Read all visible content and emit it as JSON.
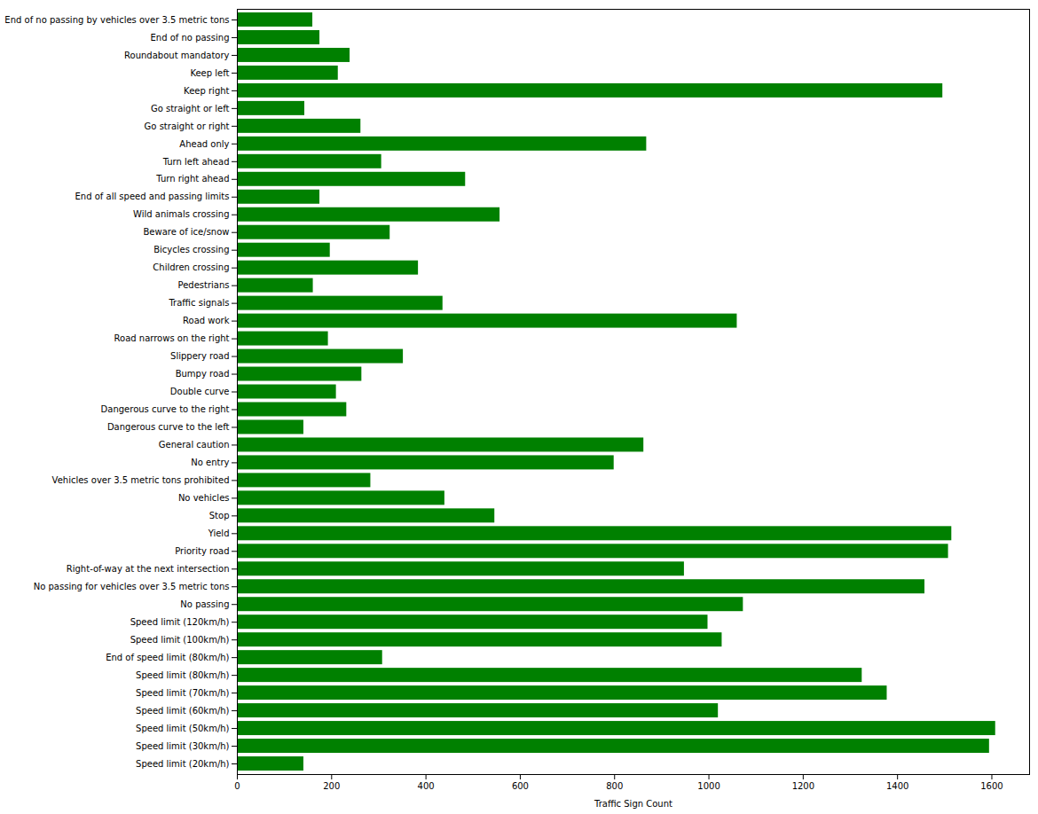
{
  "chart_data": {
    "type": "bar",
    "orientation": "horizontal",
    "color": "#008000",
    "xlabel": "Traffic Sign Count",
    "categories": [
      "Speed limit (20km/h)",
      "Speed limit (30km/h)",
      "Speed limit (50km/h)",
      "Speed limit (60km/h)",
      "Speed limit (70km/h)",
      "Speed limit (80km/h)",
      "End of speed limit (80km/h)",
      "Speed limit (100km/h)",
      "Speed limit (120km/h)",
      "No passing",
      "No passing for vehicles over 3.5 metric tons",
      "Right-of-way at the next intersection",
      "Priority road",
      "Yield",
      "Stop",
      "No vehicles",
      "Vehicles over 3.5 metric tons prohibited",
      "No entry",
      "General caution",
      "Dangerous curve to the left",
      "Dangerous curve to the right",
      "Double curve",
      "Bumpy road",
      "Slippery road",
      "Road narrows on the right",
      "Road work",
      "Traffic signals",
      "Pedestrians",
      "Children crossing",
      "Bicycles crossing",
      "Beware of ice/snow",
      "Wild animals crossing",
      "End of all speed and passing limits",
      "Turn right ahead",
      "Turn left ahead",
      "Ahead only",
      "Go straight or right",
      "Go straight or left",
      "Keep right",
      "Keep left",
      "Roundabout mandatory",
      "End of no passing",
      "End of no passing by vehicles over 3.5 metric tons"
    ],
    "values": [
      141,
      1595,
      1608,
      1020,
      1378,
      1325,
      308,
      1028,
      998,
      1073,
      1458,
      948,
      1508,
      1515,
      546,
      440,
      283,
      799,
      862,
      141,
      232,
      210,
      264,
      352,
      193,
      1060,
      436,
      161,
      384,
      197,
      324,
      557,
      175,
      484,
      306,
      868,
      262,
      143,
      1496,
      214,
      239,
      175,
      160
    ],
    "xlim": [
      0,
      1680
    ],
    "xticks": [
      0,
      200,
      400,
      600,
      800,
      1000,
      1200,
      1400,
      1600
    ],
    "grid": false
  }
}
